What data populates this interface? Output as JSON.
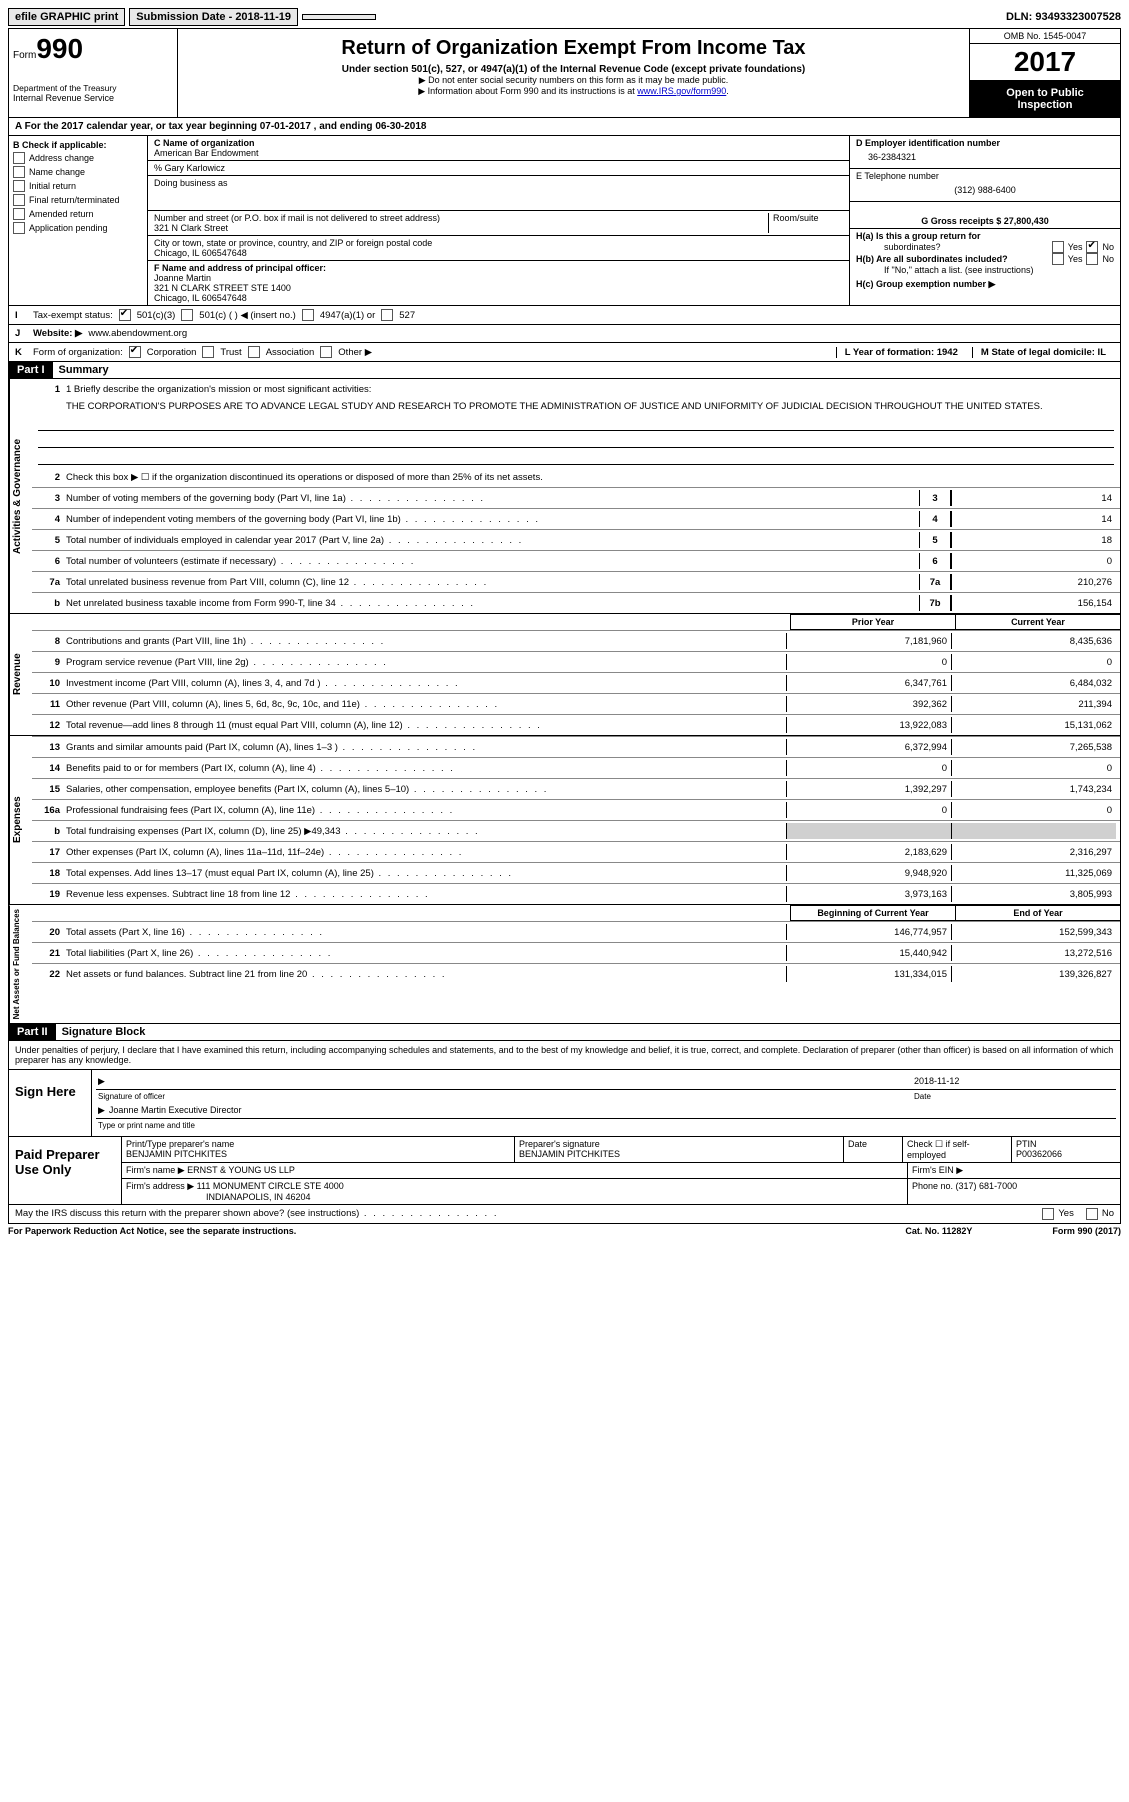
{
  "top": {
    "efile": "efile GRAPHIC print",
    "submission_label": "Submission Date - 2018-11-19",
    "dln": "DLN: 93493323007528"
  },
  "header": {
    "form_label": "Form",
    "form_num": "990",
    "dept1": "Department of the Treasury",
    "dept2": "Internal Revenue Service",
    "title": "Return of Organization Exempt From Income Tax",
    "sub": "Under section 501(c), 527, or 4947(a)(1) of the Internal Revenue Code (except private foundations)",
    "note1": "▶ Do not enter social security numbers on this form as it may be made public.",
    "note2_pre": "▶ Information about Form 990 and its instructions is at ",
    "note2_link": "www.IRS.gov/form990",
    "omb": "OMB No. 1545-0047",
    "year": "2017",
    "public1": "Open to Public",
    "public2": "Inspection"
  },
  "section_a": "A   For the 2017 calendar year, or tax year beginning 07-01-2017   , and ending 06-30-2018",
  "b": {
    "label": "B Check if applicable:",
    "opts": [
      "Address change",
      "Name change",
      "Initial return",
      "Final return/terminated",
      "Amended return",
      "Application pending"
    ]
  },
  "c": {
    "name_label": "C Name of organization",
    "name": "American Bar Endowment",
    "care_of": "% Gary Karlowicz",
    "dba_label": "Doing business as",
    "addr_label": "Number and street (or P.O. box if mail is not delivered to street address)",
    "room_label": "Room/suite",
    "addr": "321 N Clark Street",
    "city_label": "City or town, state or province, country, and ZIP or foreign postal code",
    "city": "Chicago, IL  606547648",
    "f_label": "F Name and address of principal officer:",
    "f_name": "Joanne Martin",
    "f_addr1": "321 N CLARK STREET STE 1400",
    "f_addr2": "Chicago, IL  606547648"
  },
  "d": {
    "ein_label": "D Employer identification number",
    "ein": "36-2384321",
    "tel_label": "E Telephone number",
    "tel": "(312) 988-6400",
    "gross_label": "G Gross receipts $ 27,800,430",
    "ha_label": "H(a)  Is this a group return for",
    "ha_sub": "subordinates?",
    "hb_label": "H(b)  Are all subordinates included?",
    "hb_note": "If \"No,\" attach a list. (see instructions)",
    "hc_label": "H(c)  Group exemption number ▶",
    "yes": "Yes",
    "no": "No"
  },
  "i": {
    "label": "Tax-exempt status:",
    "o1": "501(c)(3)",
    "o2": "501(c) (   ) ◀ (insert no.)",
    "o3": "4947(a)(1) or",
    "o4": "527"
  },
  "j": {
    "label": "Website: ▶",
    "val": "www.abendowment.org"
  },
  "k": {
    "label": "Form of organization:",
    "o1": "Corporation",
    "o2": "Trust",
    "o3": "Association",
    "o4": "Other ▶",
    "l": "L Year of formation: 1942",
    "m": "M State of legal domicile: IL"
  },
  "part1": {
    "header": "Part I",
    "title": "Summary",
    "briefly": "1  Briefly describe the organization's mission or most significant activities:",
    "mission": "THE CORPORATION'S PURPOSES ARE TO ADVANCE LEGAL STUDY AND RESEARCH TO PROMOTE THE ADMINISTRATION OF JUSTICE AND UNIFORMITY OF JUDICIAL DECISION THROUGHOUT THE UNITED STATES.",
    "line2": "Check this box ▶ ☐  if the organization discontinued its operations or disposed of more than 25% of its net assets.",
    "vert1": "Activities & Governance",
    "vert2": "Revenue",
    "vert3": "Expenses",
    "vert4": "Net Assets or Fund Balances",
    "rows_gov": [
      {
        "n": "3",
        "t": "Number of voting members of the governing body (Part VI, line 1a)",
        "b": "3",
        "v": "14"
      },
      {
        "n": "4",
        "t": "Number of independent voting members of the governing body (Part VI, line 1b)",
        "b": "4",
        "v": "14"
      },
      {
        "n": "5",
        "t": "Total number of individuals employed in calendar year 2017 (Part V, line 2a)",
        "b": "5",
        "v": "18"
      },
      {
        "n": "6",
        "t": "Total number of volunteers (estimate if necessary)",
        "b": "6",
        "v": "0"
      },
      {
        "n": "7a",
        "t": "Total unrelated business revenue from Part VIII, column (C), line 12",
        "b": "7a",
        "v": "210,276"
      },
      {
        "n": "b",
        "t": "Net unrelated business taxable income from Form 990-T, line 34",
        "b": "7b",
        "v": "156,154"
      }
    ],
    "prior": "Prior Year",
    "current": "Current Year",
    "rows_rev": [
      {
        "n": "8",
        "t": "Contributions and grants (Part VIII, line 1h)",
        "p": "7,181,960",
        "c": "8,435,636"
      },
      {
        "n": "9",
        "t": "Program service revenue (Part VIII, line 2g)",
        "p": "0",
        "c": "0"
      },
      {
        "n": "10",
        "t": "Investment income (Part VIII, column (A), lines 3, 4, and 7d )",
        "p": "6,347,761",
        "c": "6,484,032"
      },
      {
        "n": "11",
        "t": "Other revenue (Part VIII, column (A), lines 5, 6d, 8c, 9c, 10c, and 11e)",
        "p": "392,362",
        "c": "211,394"
      },
      {
        "n": "12",
        "t": "Total revenue—add lines 8 through 11 (must equal Part VIII, column (A), line 12)",
        "p": "13,922,083",
        "c": "15,131,062"
      }
    ],
    "rows_exp": [
      {
        "n": "13",
        "t": "Grants and similar amounts paid (Part IX, column (A), lines 1–3 )",
        "p": "6,372,994",
        "c": "7,265,538"
      },
      {
        "n": "14",
        "t": "Benefits paid to or for members (Part IX, column (A), line 4)",
        "p": "0",
        "c": "0"
      },
      {
        "n": "15",
        "t": "Salaries, other compensation, employee benefits (Part IX, column (A), lines 5–10)",
        "p": "1,392,297",
        "c": "1,743,234"
      },
      {
        "n": "16a",
        "t": "Professional fundraising fees (Part IX, column (A), line 11e)",
        "p": "0",
        "c": "0"
      },
      {
        "n": "b",
        "t": "Total fundraising expenses (Part IX, column (D), line 25) ▶49,343",
        "p": "",
        "c": "",
        "shade": true
      },
      {
        "n": "17",
        "t": "Other expenses (Part IX, column (A), lines 11a–11d, 11f–24e)",
        "p": "2,183,629",
        "c": "2,316,297"
      },
      {
        "n": "18",
        "t": "Total expenses. Add lines 13–17 (must equal Part IX, column (A), line 25)",
        "p": "9,948,920",
        "c": "11,325,069"
      },
      {
        "n": "19",
        "t": "Revenue less expenses. Subtract line 18 from line 12",
        "p": "3,973,163",
        "c": "3,805,993"
      }
    ],
    "begin": "Beginning of Current Year",
    "end": "End of Year",
    "rows_net": [
      {
        "n": "20",
        "t": "Total assets (Part X, line 16)",
        "p": "146,774,957",
        "c": "152,599,343"
      },
      {
        "n": "21",
        "t": "Total liabilities (Part X, line 26)",
        "p": "15,440,942",
        "c": "13,272,516"
      },
      {
        "n": "22",
        "t": "Net assets or fund balances. Subtract line 21 from line 20",
        "p": "131,334,015",
        "c": "139,326,827"
      }
    ]
  },
  "part2": {
    "header": "Part II",
    "title": "Signature Block",
    "decl": "Under penalties of perjury, I declare that I have examined this return, including accompanying schedules and statements, and to the best of my knowledge and belief, it is true, correct, and complete. Declaration of preparer (other than officer) is based on all information of which preparer has any knowledge.",
    "sign_here": "Sign Here",
    "sig_officer": "Signature of officer",
    "sig_date": "2018-11-12",
    "date_label": "Date",
    "officer_name": "Joanne Martin  Executive Director",
    "type_name": "Type or print name and title",
    "paid": "Paid Preparer Use Only",
    "prep_name_label": "Print/Type preparer's name",
    "prep_name": "BENJAMIN PITCHKITES",
    "prep_sig_label": "Preparer's signature",
    "prep_sig": "BENJAMIN PITCHKITES",
    "prep_date_label": "Date",
    "check_self": "Check ☐ if self-employed",
    "ptin_label": "PTIN",
    "ptin": "P00362066",
    "firm_name_label": "Firm's name     ▶",
    "firm_name": "ERNST & YOUNG US LLP",
    "firm_ein_label": "Firm's EIN ▶",
    "firm_addr_label": "Firm's address ▶",
    "firm_addr": "111 MONUMENT CIRCLE STE 4000",
    "firm_city": "INDIANAPOLIS, IN  46204",
    "firm_phone_label": "Phone no. (317) 681-7000",
    "discuss": "May the IRS discuss this return with the preparer shown above? (see instructions)"
  },
  "footer": {
    "pra": "For Paperwork Reduction Act Notice, see the separate instructions.",
    "cat": "Cat. No. 11282Y",
    "form": "Form 990 (2017)"
  }
}
